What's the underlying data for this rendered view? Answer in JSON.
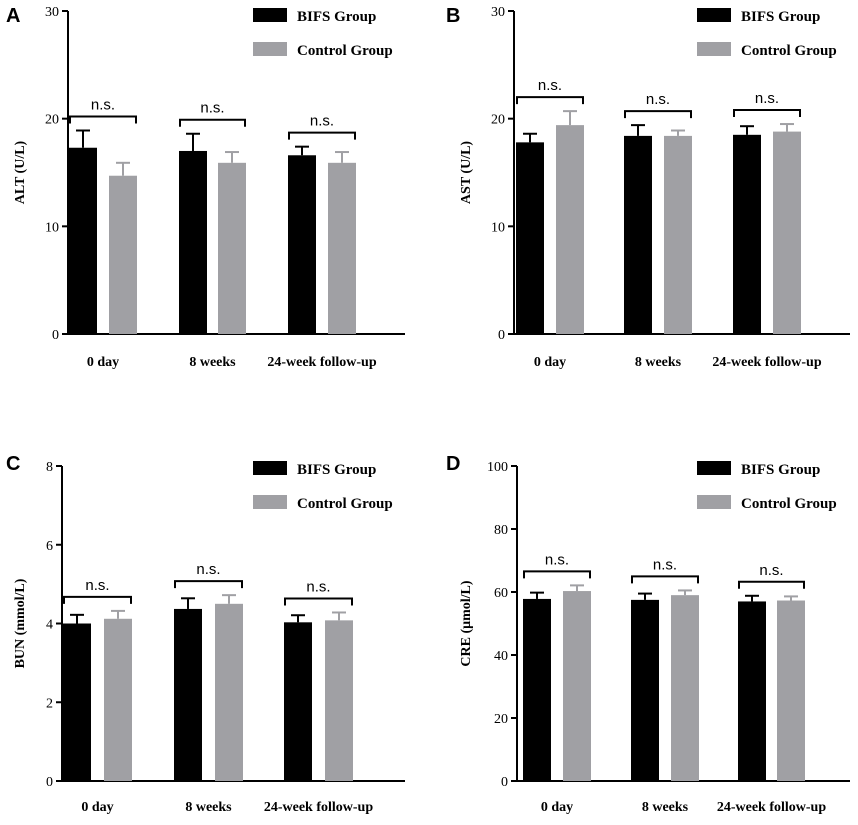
{
  "colors": {
    "bifs": "#000000",
    "control": "#a0a0a4",
    "axis": "#000000"
  },
  "chart_data": [
    {
      "type": "bar",
      "panel": "A",
      "ylabel": "ALT  (U/L)",
      "ylim": [
        0,
        30
      ],
      "yticks": [
        0,
        10,
        20,
        30
      ],
      "categories": [
        "0 day",
        "8 weeks",
        "24-week follow-up"
      ],
      "series": [
        {
          "name": "BIFS Group",
          "values": [
            17.3,
            17.0,
            16.6
          ],
          "errors": [
            1.6,
            1.6,
            0.8
          ]
        },
        {
          "name": "Control Group",
          "values": [
            14.7,
            15.9,
            15.9
          ],
          "errors": [
            1.2,
            1.0,
            1.0
          ]
        }
      ],
      "annotations": [
        "n.s.",
        "n.s.",
        "n.s."
      ],
      "legend": "top-right"
    },
    {
      "type": "bar",
      "panel": "B",
      "ylabel": "AST  (U/L)",
      "ylim": [
        0,
        30
      ],
      "yticks": [
        0,
        10,
        20,
        30
      ],
      "categories": [
        "0 day",
        "8 weeks",
        "24-week follow-up"
      ],
      "series": [
        {
          "name": "BIFS Group",
          "values": [
            17.8,
            18.4,
            18.5
          ],
          "errors": [
            0.8,
            1.0,
            0.8
          ]
        },
        {
          "name": "Control Group",
          "values": [
            19.4,
            18.4,
            18.8
          ],
          "errors": [
            1.3,
            0.5,
            0.7
          ]
        }
      ],
      "annotations": [
        "n.s.",
        "n.s.",
        "n.s."
      ],
      "legend": "top-right"
    },
    {
      "type": "bar",
      "panel": "C",
      "ylabel": "BUN  (mmol/L)",
      "ylim": [
        0,
        8
      ],
      "yticks": [
        0,
        2,
        4,
        6,
        8
      ],
      "categories": [
        "0 day",
        "8 weeks",
        "24-week follow-up"
      ],
      "series": [
        {
          "name": "BIFS Group",
          "values": [
            4.0,
            4.37,
            4.03
          ],
          "errors": [
            0.22,
            0.27,
            0.18
          ]
        },
        {
          "name": "Control Group",
          "values": [
            4.12,
            4.5,
            4.08
          ],
          "errors": [
            0.2,
            0.22,
            0.2
          ]
        }
      ],
      "annotations": [
        "n.s.",
        "n.s.",
        "n.s."
      ],
      "legend": "top-right"
    },
    {
      "type": "bar",
      "panel": "D",
      "ylabel": "CRE  (μmol/L)",
      "ylim": [
        0,
        100
      ],
      "yticks": [
        0,
        20,
        40,
        60,
        80,
        100
      ],
      "categories": [
        "0 day",
        "8 weeks",
        "24-week follow-up"
      ],
      "series": [
        {
          "name": "BIFS Group",
          "values": [
            57.8,
            57.5,
            57.0
          ],
          "errors": [
            2.0,
            2.0,
            1.8
          ]
        },
        {
          "name": "Control Group",
          "values": [
            60.3,
            59.0,
            57.3
          ],
          "errors": [
            1.8,
            1.5,
            1.3
          ]
        }
      ],
      "annotations": [
        "n.s.",
        "n.s.",
        "n.s."
      ],
      "legend": "top-right"
    }
  ]
}
